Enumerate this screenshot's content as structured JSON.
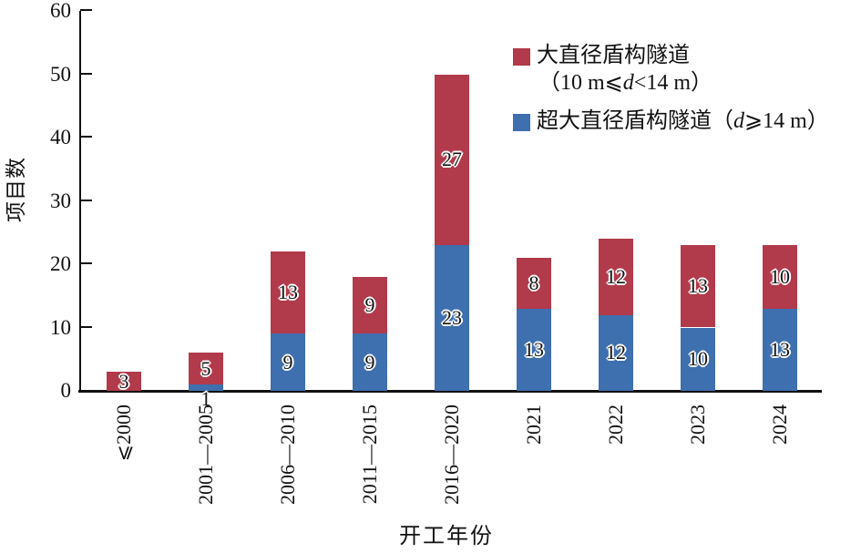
{
  "chart_data": {
    "type": "bar",
    "stacked": true,
    "title": "",
    "xlabel": "开工年份",
    "ylabel": "项目数",
    "ylim": [
      0,
      60
    ],
    "yticks": [
      0,
      10,
      20,
      30,
      40,
      50,
      60
    ],
    "grid": false,
    "legend_position": "upper right",
    "categories": [
      "⩽2000",
      "2001—2005",
      "2006—2010",
      "2011—2015",
      "2016—2020",
      "2021",
      "2022",
      "2023",
      "2024"
    ],
    "series": [
      {
        "name": "超大直径盾构隧道（d⩾14 m）",
        "role": "bottom-stack",
        "color": "#3e6fae",
        "values": [
          0,
          1,
          9,
          9,
          23,
          13,
          12,
          10,
          13
        ]
      },
      {
        "name": "大直径盾构隧道（10 m⩽d<14 m）",
        "role": "top-stack",
        "color": "#b13a4b",
        "values": [
          3,
          5,
          13,
          9,
          27,
          8,
          12,
          13,
          10
        ]
      }
    ]
  },
  "legend": {
    "entries": [
      {
        "swatch_color": "#b13a4b",
        "line1": "大直径盾构隧道",
        "line2_pre": "（10 m⩽",
        "line2_d": "d",
        "line2_post": "<14 m）"
      },
      {
        "swatch_color": "#3e6fae",
        "line1_pre": "超大直径盾构隧道（",
        "line1_d": "d",
        "line1_post": "⩾14 m）"
      }
    ]
  },
  "colors": {
    "axis": "#111111",
    "background": "#ffffff",
    "bar_blue": "#3e6fae",
    "bar_red": "#b13a4b"
  }
}
